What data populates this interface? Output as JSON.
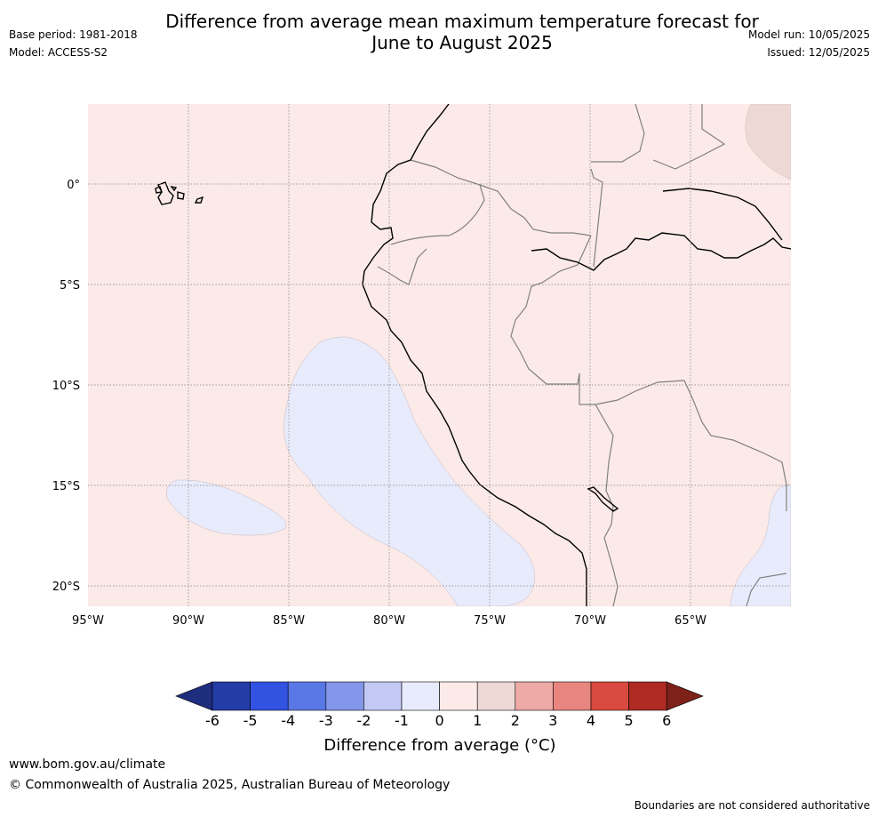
{
  "header": {
    "title_line1": "Difference from average mean maximum temperature forecast for",
    "title_line2": "June to August 2025",
    "base_period": "Base period: 1981-2018",
    "model": "Model: ACCESS-S2",
    "model_run": "Model run: 10/05/2025",
    "issued": "Issued: 12/05/2025"
  },
  "map": {
    "lat_labels": [
      "0°",
      "5°S",
      "10°S",
      "15°S",
      "20°S"
    ],
    "lon_labels": [
      "95°W",
      "90°W",
      "85°W",
      "80°W",
      "75°W",
      "70°W",
      "65°W"
    ],
    "colors": {
      "base_anomaly": "#fbeae8",
      "warm_anomaly": "#eed8d6",
      "cool_anomaly": "#e8ebfb",
      "coastline": "#000000",
      "border": "#808080",
      "grid": "#7f7f7f"
    }
  },
  "colorbar": {
    "title": "Difference from average (°C)",
    "ticks": [
      "-6",
      "-5",
      "-4",
      "-3",
      "-2",
      "-1",
      "0",
      "1",
      "2",
      "3",
      "4",
      "5",
      "6"
    ],
    "colors": [
      "#243da6",
      "#3252e2",
      "#5a77e6",
      "#8396ea",
      "#c2c9f5",
      "#e8ebfb",
      "#fbeae8",
      "#eed8d6",
      "#eeaaa6",
      "#e8857e",
      "#d94a40",
      "#ae2b24"
    ],
    "under_color": "#1f2d7e",
    "over_color": "#7e2118"
  },
  "footer": {
    "url": "www.bom.gov.au/climate",
    "copyright": "© Commonwealth of Australia 2025, Australian Bureau of Meteorology",
    "note": "Boundaries are not considered authoritative"
  }
}
